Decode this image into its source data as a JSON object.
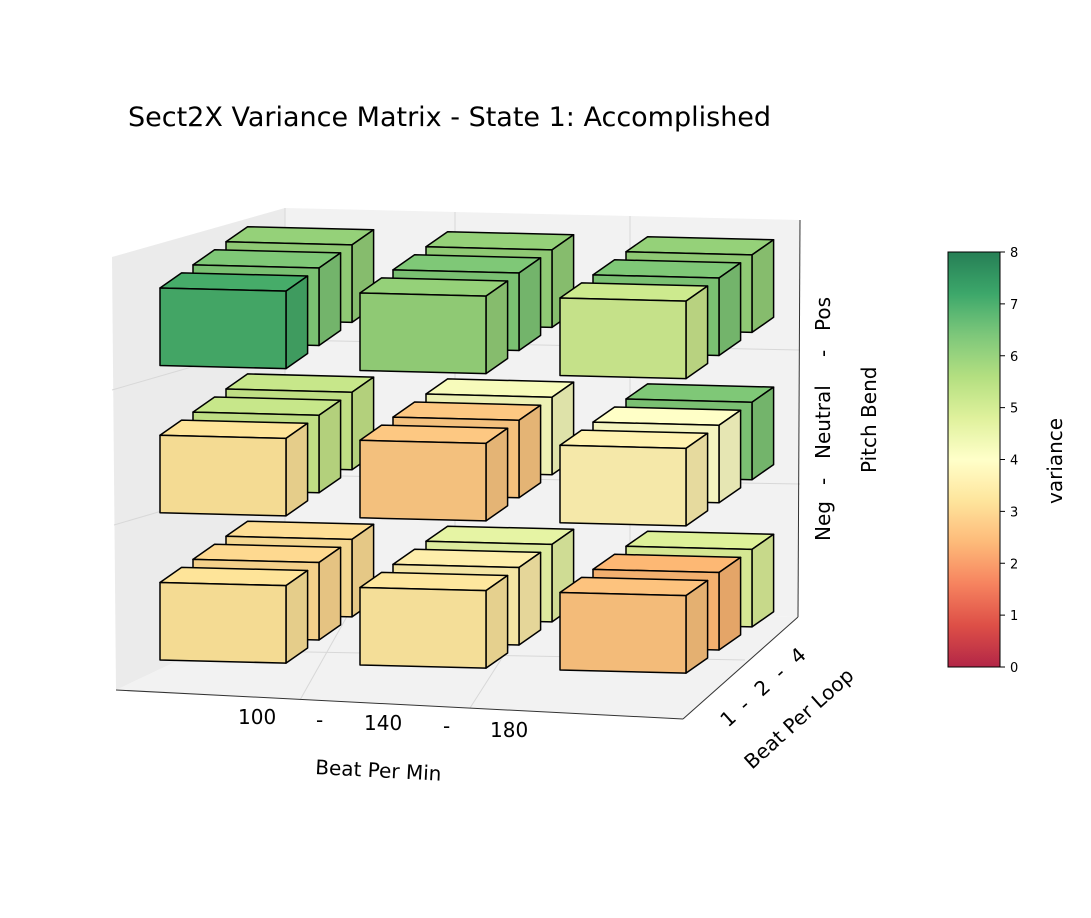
{
  "chart_data": {
    "type": "bar3d",
    "title": "Sect2X Variance Matrix - State 1: Accomplished",
    "x_axis": {
      "label": "Beat Per Min",
      "ticks": [
        "100",
        "-",
        "140",
        "-",
        "180"
      ],
      "categories": [
        "100",
        "140",
        "180"
      ]
    },
    "y_axis": {
      "label": "Beat Per Loop",
      "ticks": [
        "1",
        "-",
        "2",
        "-",
        "4"
      ],
      "categories": [
        "1",
        "2",
        "4"
      ]
    },
    "z_axis": {
      "label": "Pitch Bend",
      "ticks": [
        "Neg",
        "-",
        "Neutral",
        "-",
        "Pos"
      ],
      "categories": [
        "Neg",
        "Neutral",
        "Pos"
      ]
    },
    "colorbar": {
      "label": "variance",
      "min": 0,
      "max": 8,
      "ticks": [
        "0",
        "1",
        "2",
        "3",
        "4",
        "5",
        "6",
        "7",
        "8"
      ],
      "colormap": "RdYlGn"
    },
    "grid": true,
    "values": [
      {
        "bpm": "100",
        "loop": "1",
        "pitch": "Neg",
        "variance": 3.2
      },
      {
        "bpm": "100",
        "loop": "2",
        "pitch": "Neg",
        "variance": 3.0
      },
      {
        "bpm": "100",
        "loop": "4",
        "pitch": "Neg",
        "variance": 3.1
      },
      {
        "bpm": "140",
        "loop": "1",
        "pitch": "Neg",
        "variance": 3.3
      },
      {
        "bpm": "140",
        "loop": "2",
        "pitch": "Neg",
        "variance": 3.5
      },
      {
        "bpm": "140",
        "loop": "4",
        "pitch": "Neg",
        "variance": 4.6
      },
      {
        "bpm": "180",
        "loop": "1",
        "pitch": "Neg",
        "variance": 2.6
      },
      {
        "bpm": "180",
        "loop": "2",
        "pitch": "Neg",
        "variance": 2.4
      },
      {
        "bpm": "180",
        "loop": "4",
        "pitch": "Neg",
        "variance": 4.8
      },
      {
        "bpm": "100",
        "loop": "1",
        "pitch": "Neutral",
        "variance": 3.2
      },
      {
        "bpm": "100",
        "loop": "2",
        "pitch": "Neutral",
        "variance": 5.2
      },
      {
        "bpm": "100",
        "loop": "4",
        "pitch": "Neutral",
        "variance": 5.2
      },
      {
        "bpm": "140",
        "loop": "1",
        "pitch": "Neutral",
        "variance": 2.7
      },
      {
        "bpm": "140",
        "loop": "2",
        "pitch": "Neutral",
        "variance": 2.7
      },
      {
        "bpm": "140",
        "loop": "4",
        "pitch": "Neutral",
        "variance": 4.2
      },
      {
        "bpm": "180",
        "loop": "1",
        "pitch": "Neutral",
        "variance": 3.6
      },
      {
        "bpm": "180",
        "loop": "2",
        "pitch": "Neutral",
        "variance": 4.0
      },
      {
        "bpm": "180",
        "loop": "4",
        "pitch": "Neutral",
        "variance": 6.3
      },
      {
        "bpm": "100",
        "loop": "1",
        "pitch": "Pos",
        "variance": 7.0
      },
      {
        "bpm": "100",
        "loop": "2",
        "pitch": "Pos",
        "variance": 6.3
      },
      {
        "bpm": "100",
        "loop": "4",
        "pitch": "Pos",
        "variance": 6.0
      },
      {
        "bpm": "140",
        "loop": "1",
        "pitch": "Pos",
        "variance": 6.0
      },
      {
        "bpm": "140",
        "loop": "2",
        "pitch": "Pos",
        "variance": 6.3
      },
      {
        "bpm": "140",
        "loop": "4",
        "pitch": "Pos",
        "variance": 6.0
      },
      {
        "bpm": "180",
        "loop": "1",
        "pitch": "Pos",
        "variance": 5.1
      },
      {
        "bpm": "180",
        "loop": "2",
        "pitch": "Pos",
        "variance": 6.3
      },
      {
        "bpm": "180",
        "loop": "4",
        "pitch": "Pos",
        "variance": 6.0
      }
    ]
  }
}
